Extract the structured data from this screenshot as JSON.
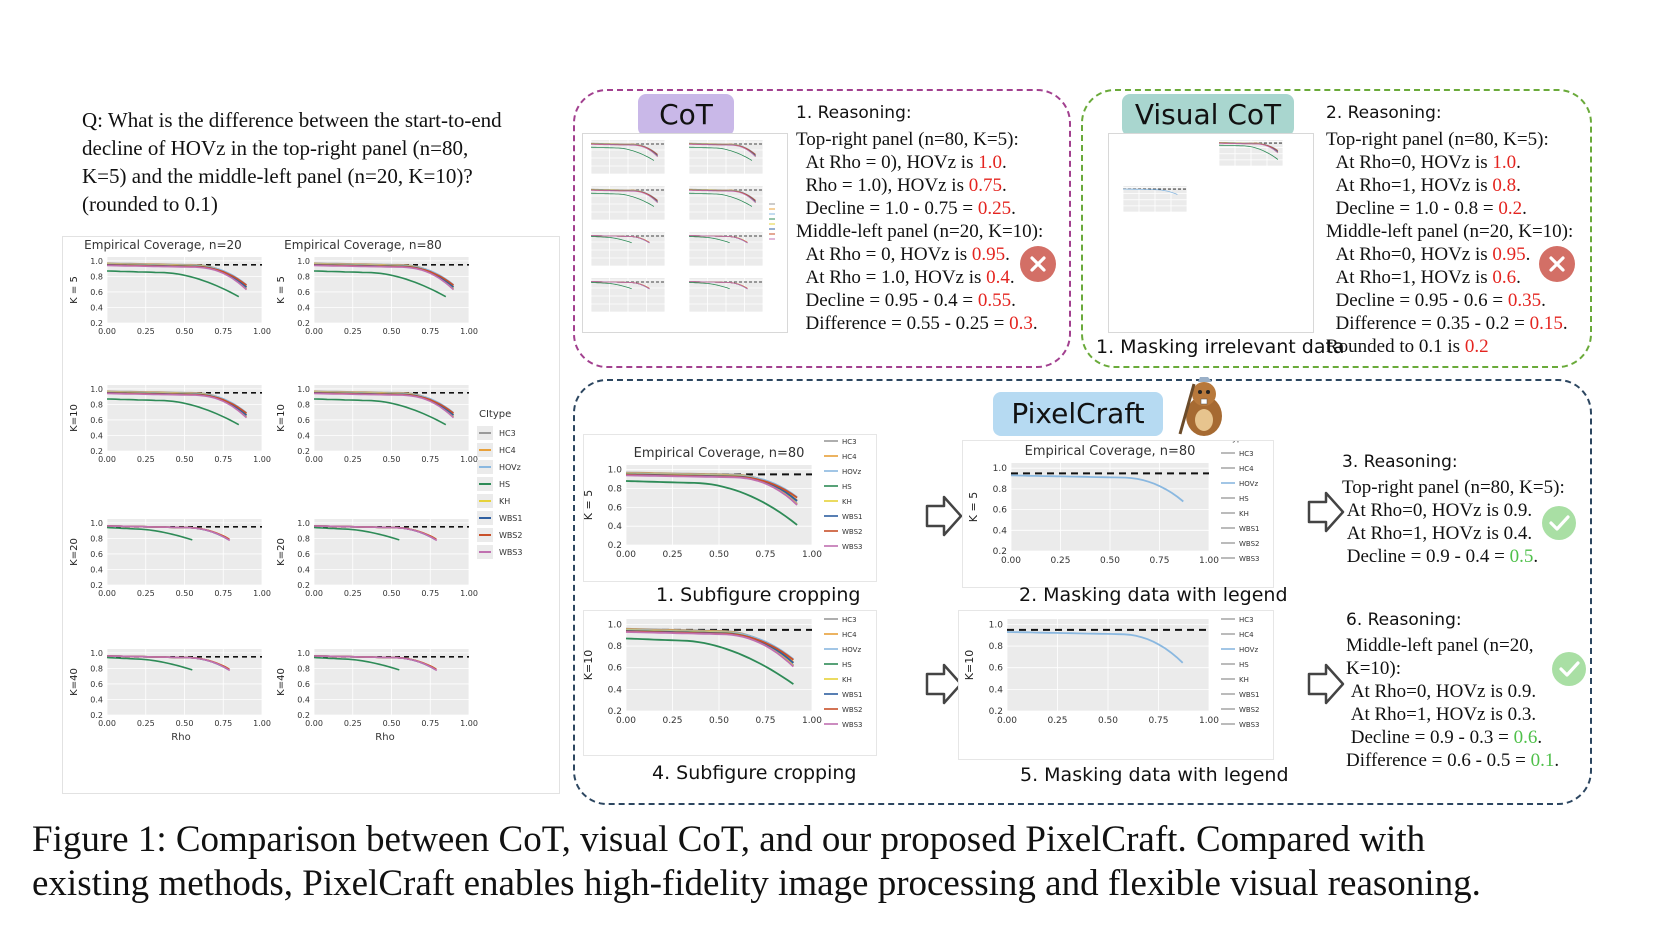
{
  "question": {
    "lines": [
      "Q: What is the difference between the start-to-end",
      "decline of HOVz in the top-right panel (n=80,",
      "K=5) and the middle-left panel (n=20, K=10)?",
      "(rounded to 0.1)"
    ]
  },
  "left_figure": {
    "col_titles": [
      "Empirical Coverage, n=20",
      "Empirical Coverage, n=80"
    ],
    "row_labels": [
      "K = 5",
      "K=10",
      "K=20",
      "K=40"
    ],
    "y_ticks": [
      "1.0",
      "0.8",
      "0.6",
      "0.4",
      "0.2"
    ],
    "x_ticks": [
      "0.00",
      "0.25",
      "0.50",
      "0.75",
      "1.00"
    ],
    "x_label": "Rho",
    "legend_title": "CItype",
    "legend_items": [
      "HC3",
      "HC4",
      "HOVz",
      "HS",
      "KH",
      "WBS1",
      "WBS2",
      "WBS3"
    ]
  },
  "series_colors": {
    "HC3": "#9a9a9a",
    "HC4": "#e8a03a",
    "HOVz": "#8ab8e0",
    "HS": "#2e8b57",
    "KH": "#e6d23a",
    "WBS1": "#2f5fa0",
    "WBS2": "#c8502a",
    "WBS3": "#c070b0"
  },
  "cot": {
    "badge": "CoT",
    "heading": "1. Reasoning:",
    "lines": [
      [
        {
          "t": "Top-right panel (n=80, K=5):"
        }
      ],
      [
        {
          "t": "  At Rho = 0), HOVz is "
        },
        {
          "t": "1.0",
          "c": "red"
        },
        {
          "t": "."
        }
      ],
      [
        {
          "t": "  Rho = 1.0), HOVz is "
        },
        {
          "t": "0.75",
          "c": "red"
        },
        {
          "t": "."
        }
      ],
      [
        {
          "t": "  Decline = 1.0 - 0.75 = "
        },
        {
          "t": "0.25",
          "c": "red"
        },
        {
          "t": "."
        }
      ],
      [
        {
          "t": "Middle-left panel (n=20, K=10):"
        }
      ],
      [
        {
          "t": "  At Rho = 0, HOVz is "
        },
        {
          "t": "0.95",
          "c": "red"
        },
        {
          "t": "."
        }
      ],
      [
        {
          "t": "  At Rho = 1.0, HOVz is "
        },
        {
          "t": "0.4",
          "c": "red"
        },
        {
          "t": "."
        }
      ],
      [
        {
          "t": "  Decline = 0.95 - 0.4 = "
        },
        {
          "t": "0.55",
          "c": "red"
        },
        {
          "t": "."
        }
      ],
      [
        {
          "t": "  Difference = 0.55 - 0.25 = "
        },
        {
          "t": "0.3",
          "c": "red"
        },
        {
          "t": "."
        }
      ]
    ]
  },
  "visual_cot": {
    "badge": "Visual CoT",
    "heading": "2. Reasoning:",
    "step1": "1. Masking irrelevant data",
    "lines": [
      [
        {
          "t": "Top-right panel (n=80, K=5):"
        }
      ],
      [
        {
          "t": "  At Rho=0, HOVz is "
        },
        {
          "t": "1.0",
          "c": "red"
        },
        {
          "t": "."
        }
      ],
      [
        {
          "t": "  At Rho=1, HOVz is "
        },
        {
          "t": "0.8",
          "c": "red"
        },
        {
          "t": "."
        }
      ],
      [
        {
          "t": "  Decline = 1.0 - 0.8 = "
        },
        {
          "t": "0.2",
          "c": "red"
        },
        {
          "t": "."
        }
      ],
      [
        {
          "t": "Middle-left panel (n=20, K=10):"
        }
      ],
      [
        {
          "t": "  At Rho=0, HOVz is "
        },
        {
          "t": "0.95",
          "c": "red"
        },
        {
          "t": "."
        }
      ],
      [
        {
          "t": "  At Rho=1, HOVz is "
        },
        {
          "t": "0.6",
          "c": "red"
        },
        {
          "t": "."
        }
      ],
      [
        {
          "t": "  Decline = 0.95 - 0.6 = "
        },
        {
          "t": "0.35",
          "c": "red"
        },
        {
          "t": "."
        }
      ],
      [
        {
          "t": "  Difference = 0.35 - 0.2 = "
        },
        {
          "t": "0.15",
          "c": "red"
        },
        {
          "t": "."
        }
      ],
      [
        {
          "t": "Rounded to 0.1 is "
        },
        {
          "t": "0.2",
          "c": "red"
        }
      ]
    ]
  },
  "pixelcraft": {
    "badge": "PixelCraft",
    "step1": "1. Subfigure cropping",
    "step2": "2. Masking data with legend",
    "step4": "4. Subfigure cropping",
    "step5": "5. Masking data with legend",
    "top_title": "Empirical Coverage, n=80",
    "top_row_label": "K = 5",
    "bottom_row_label": "K=10",
    "heading3": "3. Reasoning:",
    "lines3": [
      [
        {
          "t": "Top-right panel (n=80, K=5):"
        }
      ],
      [
        {
          "t": " At Rho=0, HOVz is 0.9."
        }
      ],
      [
        {
          "t": " At Rho=1, HOVz is 0.4."
        }
      ],
      [
        {
          "t": " Decline = 0.9 - 0.4 = "
        },
        {
          "t": "0.5",
          "c": "green"
        },
        {
          "t": "."
        }
      ]
    ],
    "heading6": "6. Reasoning:",
    "lines6": [
      [
        {
          "t": "Middle-left panel (n=20,"
        }
      ],
      [
        {
          "t": "K=10):"
        }
      ],
      [
        {
          "t": " At Rho=0, HOVz is 0.9."
        }
      ],
      [
        {
          "t": " At Rho=1, HOVz is 0.3."
        }
      ],
      [
        {
          "t": " Decline = 0.9 - 0.3 = "
        },
        {
          "t": "0.6",
          "c": "green"
        },
        {
          "t": "."
        }
      ],
      [
        {
          "t": "Difference = 0.6 - 0.5 = "
        },
        {
          "t": "0.1",
          "c": "green"
        },
        {
          "t": "."
        }
      ]
    ]
  },
  "figure_caption": {
    "lines": [
      "Figure 1:  Comparison between CoT, visual CoT, and our proposed PixelCraft.  Compared with",
      "existing methods, PixelCraft enables high-fidelity image processing and flexible visual reasoning."
    ]
  }
}
